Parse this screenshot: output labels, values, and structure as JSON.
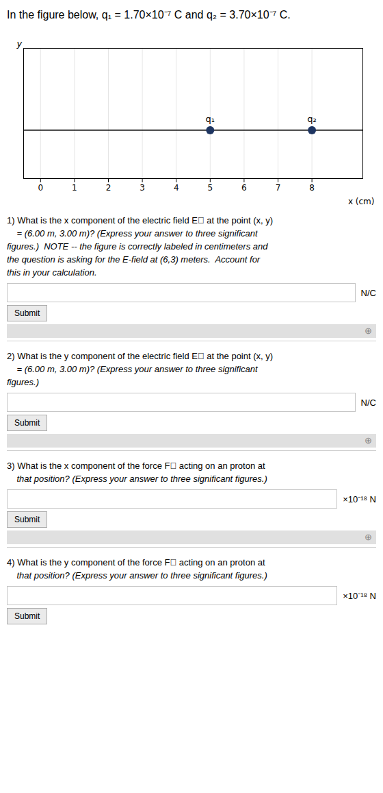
{
  "chart_data": {
    "type": "scatter",
    "title": "In the figure below, q₁ = 1.70×10⁻⁷ C and q₂ = 3.70×10⁻⁷ C.",
    "x_label": "x (cm)",
    "y_label": "y",
    "x": [
      5,
      8
    ],
    "values": [
      0,
      0
    ],
    "color": "#1e3561",
    "xlim": [
      -0.5,
      9.5
    ],
    "ylim": [
      -0.65,
      1.1
    ],
    "xticks": [
      0,
      1,
      2,
      3,
      4,
      5,
      6,
      7,
      8
    ],
    "tick_labels": "x",
    "grid": true,
    "annotations": [
      {
        "text": "q₁",
        "x": 5,
        "y": 0
      },
      {
        "text": "q₂",
        "x": 8,
        "y": 0
      },
      {
        "type": "question",
        "text": "1) What is the x component of the electric field E⃗ at the point (x, y)\n    = (6.00 m, 3.00 m)? (Express your answer to three significant\nfigures.)  NOTE -- the figure is correctly labeled in centimeters and\nthe question is asking for the E-field at (6,3) meters.  Account for\nthis in your calculation."
      },
      {
        "type": "input",
        "text": "N/C"
      },
      {
        "type": "button",
        "text": "Submit"
      },
      {
        "type": "hint",
        "text": "⊕"
      },
      {
        "type": "question",
        "text": "2) What is the y component of the electric field E⃗ at the point (x, y)\n    = (6.00 m, 3.00 m)? (Express your answer to three significant\nfigures.)"
      },
      {
        "type": "input",
        "text": "N/C"
      },
      {
        "type": "button",
        "text": "Submit"
      },
      {
        "type": "hint",
        "text": "⊕"
      },
      {
        "type": "question",
        "text": "3) What is the x component of the force F⃗ acting on an proton at\n    that position? (Express your answer to three significant figures.)"
      },
      {
        "type": "input",
        "text": "×10⁻¹⁸ N"
      },
      {
        "type": "button",
        "text": "Submit"
      },
      {
        "type": "hint",
        "text": "⊕"
      },
      {
        "type": "question",
        "text": "4) What is the y component of the force F⃗ acting on an proton at\n    that position? (Express your answer to three significant figures.)"
      },
      {
        "type": "input",
        "text": "×10⁻¹⁸ N"
      },
      {
        "type": "button",
        "text": "Submit"
      }
    ]
  }
}
